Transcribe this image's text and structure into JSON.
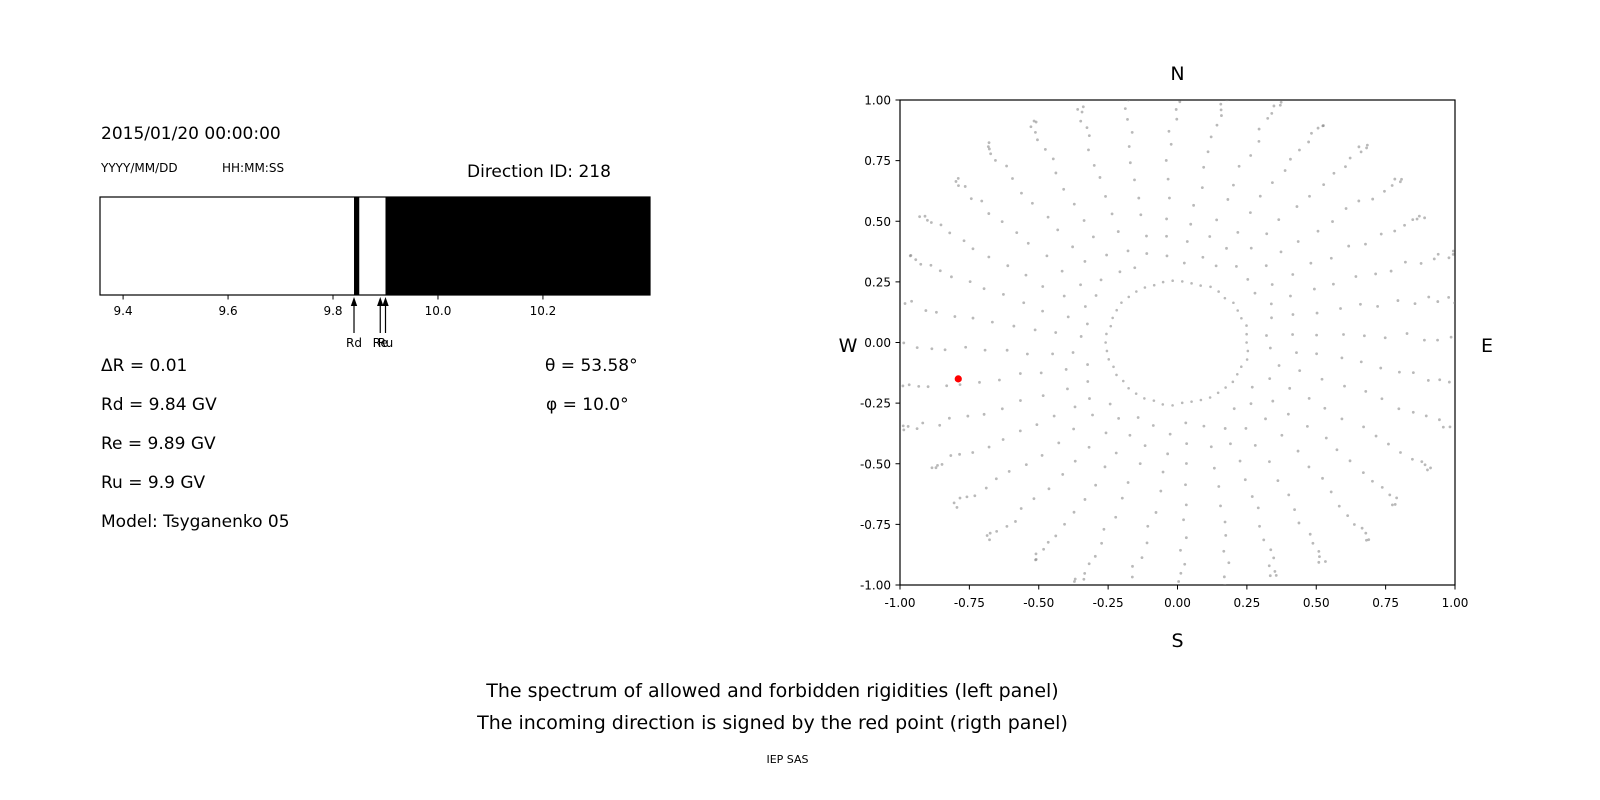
{
  "header": {
    "datetime": "2015/01/20 00:00:00",
    "date_format": "YYYY/MM/DD",
    "time_format": "HH:MM:SS",
    "direction_id": "Direction ID: 218"
  },
  "info": {
    "delta_r": "ΔR = 0.01",
    "theta": "θ = 53.58°",
    "rd": "Rd = 9.84 GV",
    "phi": "φ = 10.0°",
    "re": "Re = 9.89 GV",
    "ru": "Ru = 9.9 GV",
    "model": "Model: Tsyganenko 05"
  },
  "caption": {
    "line1": "The spectrum of allowed and forbidden rigidities (left panel)",
    "line2": "The incoming direction is signed by the red point (rigth panel)",
    "credit": "IEP SAS"
  },
  "chart_data": [
    {
      "type": "area",
      "xlim": [
        9.356,
        10.404
      ],
      "xticks": [
        9.4,
        9.6,
        9.8,
        10.0,
        10.2
      ],
      "tick_decimals": 1,
      "allowed_color": "#ffffff",
      "forbidden_color": "#000000",
      "forbidden_intervals": [
        [
          9.84,
          9.85
        ],
        [
          9.9,
          10.404
        ]
      ],
      "markers": [
        {
          "label": "Rd",
          "x": 9.84
        },
        {
          "label": "Re",
          "x": 9.89
        },
        {
          "label": "Ru",
          "x": 9.9
        }
      ],
      "delta_R": 0.01
    },
    {
      "type": "scatter",
      "xlim": [
        -1,
        1
      ],
      "ylim": [
        -1,
        1
      ],
      "xticks": [
        -1,
        -0.75,
        -0.5,
        -0.25,
        0,
        0.25,
        0.5,
        0.75,
        1
      ],
      "yticks": [
        -1,
        -0.75,
        -0.5,
        -0.25,
        0,
        0.25,
        0.5,
        0.75,
        1
      ],
      "tick_decimals": 2,
      "compass": {
        "top": "N",
        "bottom": "S",
        "left": "W",
        "right": "E"
      },
      "dot_color": "#7f7f7f",
      "grid_pattern": {
        "inner_ring": {
          "radius": 0.255,
          "num_dots": 46
        },
        "spokes": {
          "count": 36,
          "start_deg": 0,
          "r_start": 0.33,
          "r_start_jitter": 0.06,
          "r_end": 1.07,
          "r_end_jitter": 0.05,
          "dots_per_spoke": 14,
          "curl_deg": 6
        }
      },
      "red_point": {
        "x": -0.79,
        "y": -0.15,
        "color": "#ff0000"
      }
    }
  ]
}
